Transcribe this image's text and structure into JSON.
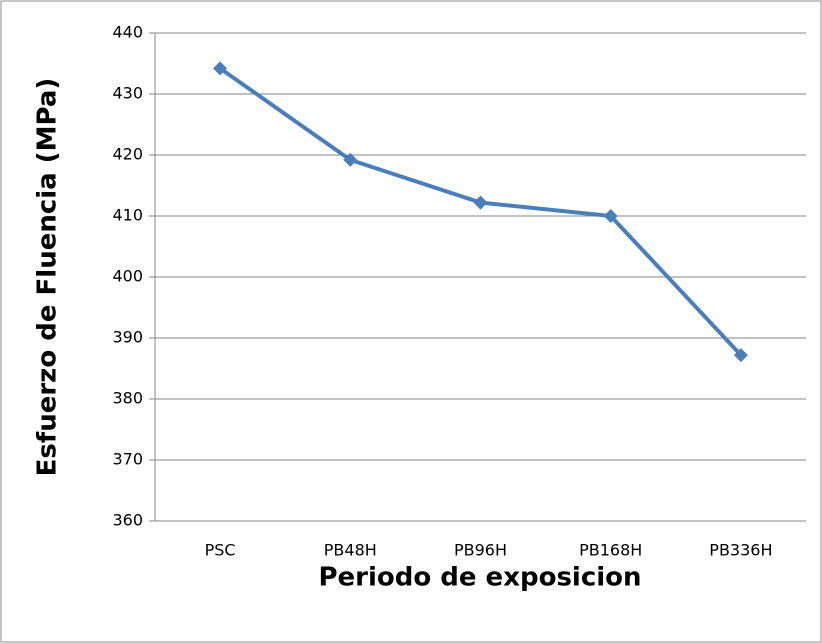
{
  "chart_data": {
    "type": "line",
    "x_label": "Periodo de exposicion",
    "y_label": "Esfuerzo de Fluencia (MPa)",
    "categories": [
      "PSC",
      "PB48H",
      "PB96H",
      "PB168H",
      "PB336H"
    ],
    "series": [
      {
        "name": "Esfuerzo de Fluencia",
        "color": "#4a7ebb",
        "values": [
          434.2,
          419.2,
          412.2,
          410,
          387.2
        ]
      }
    ],
    "ylim": [
      360,
      440
    ],
    "yticks": [
      360,
      370,
      380,
      390,
      400,
      410,
      420,
      430,
      440
    ],
    "grid": true
  }
}
